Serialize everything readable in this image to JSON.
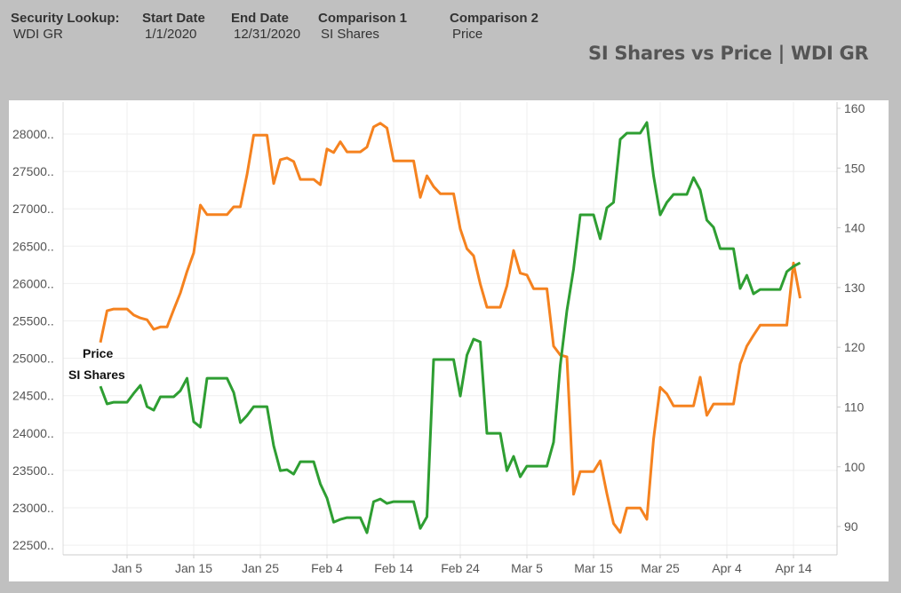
{
  "header": {
    "fields": [
      {
        "label": "Security Lookup:",
        "value": "WDI GR"
      },
      {
        "label": "Start Date",
        "value": "1/1/2020"
      },
      {
        "label": "End Date",
        "value": "12/31/2020"
      },
      {
        "label": "Comparison 1",
        "value": "SI Shares"
      },
      {
        "label": "Comparison 2",
        "value": "Price"
      }
    ]
  },
  "chart_data": {
    "type": "line",
    "title": "SI Shares vs Price | WDI GR",
    "grid": true,
    "x_tick_labels": [
      "Jan 5",
      "Jan 15",
      "Jan 25",
      "Feb 4",
      "Feb 14",
      "Feb 24",
      "Mar 5",
      "Mar 15",
      "Mar 25",
      "Apr 4",
      "Apr 14"
    ],
    "x_ticks": [
      "2020-01-05",
      "2020-01-15",
      "2020-01-25",
      "2020-02-04",
      "2020-02-14",
      "2020-02-24",
      "2020-03-05",
      "2020-03-15",
      "2020-03-25",
      "2020-04-04",
      "2020-04-14"
    ],
    "left_axis": {
      "ylim": [
        22350,
        28400
      ],
      "ticks": [
        22500,
        23000,
        23500,
        24000,
        24500,
        25000,
        25500,
        26000,
        26500,
        27000,
        27500,
        28000
      ],
      "tick_labels": [
        "22500..",
        "23000..",
        "23500..",
        "24000..",
        "24500..",
        "25000..",
        "25500..",
        "26000..",
        "26500..",
        "27000..",
        "27500..",
        "28000.."
      ]
    },
    "right_axis": {
      "ylim": [
        86,
        160.5
      ],
      "ticks": [
        90,
        100,
        110,
        120,
        130,
        140,
        150,
        160
      ],
      "tick_labels": [
        "90",
        "100",
        "110",
        "120",
        "130",
        "140",
        "150",
        "160"
      ]
    },
    "series": [
      {
        "name": "Price",
        "axis": "right",
        "color": "#f5821f",
        "x": [
          "2020-01-01",
          "2020-01-02",
          "2020-01-03",
          "2020-01-05",
          "2020-01-06",
          "2020-01-07",
          "2020-01-08",
          "2020-01-09",
          "2020-01-10",
          "2020-01-11",
          "2020-01-12",
          "2020-01-13",
          "2020-01-14",
          "2020-01-15",
          "2020-01-16",
          "2020-01-17",
          "2020-01-20",
          "2020-01-21",
          "2020-01-22",
          "2020-01-23",
          "2020-01-24",
          "2020-01-26",
          "2020-01-27",
          "2020-01-28",
          "2020-01-29",
          "2020-01-30",
          "2020-01-31",
          "2020-02-02",
          "2020-02-03",
          "2020-02-04",
          "2020-02-05",
          "2020-02-06",
          "2020-02-07",
          "2020-02-09",
          "2020-02-10",
          "2020-02-11",
          "2020-02-12",
          "2020-02-13",
          "2020-02-14",
          "2020-02-17",
          "2020-02-18",
          "2020-02-19",
          "2020-02-20",
          "2020-02-21",
          "2020-02-23",
          "2020-02-24",
          "2020-02-25",
          "2020-02-26",
          "2020-02-27",
          "2020-02-28",
          "2020-03-01",
          "2020-03-02",
          "2020-03-03",
          "2020-03-04",
          "2020-03-05",
          "2020-03-06",
          "2020-03-08",
          "2020-03-09",
          "2020-03-10",
          "2020-03-11",
          "2020-03-12",
          "2020-03-13",
          "2020-03-15",
          "2020-03-16",
          "2020-03-17",
          "2020-03-18",
          "2020-03-19",
          "2020-03-20",
          "2020-03-22",
          "2020-03-23",
          "2020-03-24",
          "2020-03-25",
          "2020-03-26",
          "2020-03-27",
          "2020-03-30",
          "2020-03-31",
          "2020-04-01",
          "2020-04-02",
          "2020-04-05",
          "2020-04-06",
          "2020-04-07",
          "2020-04-08",
          "2020-04-09",
          "2020-04-13",
          "2020-04-14",
          "2020-04-15"
        ],
        "values": [
          120.8,
          126.1,
          126.4,
          126.4,
          125.4,
          124.9,
          124.6,
          123.0,
          123.4,
          123.4,
          126.3,
          129.1,
          132.7,
          135.8,
          143.8,
          142.2,
          142.2,
          143.5,
          143.5,
          148.9,
          155.5,
          155.5,
          147.4,
          151.4,
          151.7,
          151.1,
          148.1,
          148.1,
          147.2,
          153.2,
          152.6,
          154.4,
          152.7,
          152.7,
          153.5,
          156.9,
          157.5,
          156.7,
          151.2,
          151.2,
          145.1,
          148.7,
          146.9,
          145.7,
          145.7,
          139.8,
          136.5,
          135.3,
          130.6,
          126.7,
          126.7,
          130.3,
          136.2,
          132.4,
          132.1,
          129.8,
          129.8,
          120.2,
          118.7,
          118.4,
          95.4,
          99.2,
          99.2,
          101.0,
          95.5,
          90.5,
          89.0,
          93.1,
          93.1,
          91.2,
          104.6,
          113.3,
          112.2,
          110.2,
          110.2,
          115.0,
          108.6,
          110.5,
          110.5,
          117.2,
          120.2,
          122.0,
          123.7,
          123.7,
          134.1,
          128.2
        ]
      },
      {
        "name": "SI Shares",
        "axis": "left",
        "color": "#2e9e32",
        "x": [
          "2020-01-01",
          "2020-01-02",
          "2020-01-03",
          "2020-01-05",
          "2020-01-06",
          "2020-01-07",
          "2020-01-08",
          "2020-01-09",
          "2020-01-10",
          "2020-01-12",
          "2020-01-13",
          "2020-01-14",
          "2020-01-15",
          "2020-01-16",
          "2020-01-17",
          "2020-01-20",
          "2020-01-21",
          "2020-01-22",
          "2020-01-23",
          "2020-01-24",
          "2020-01-26",
          "2020-01-27",
          "2020-01-28",
          "2020-01-29",
          "2020-01-30",
          "2020-01-31",
          "2020-02-02",
          "2020-02-03",
          "2020-02-04",
          "2020-02-05",
          "2020-02-06",
          "2020-02-07",
          "2020-02-09",
          "2020-02-10",
          "2020-02-11",
          "2020-02-12",
          "2020-02-13",
          "2020-02-14",
          "2020-02-17",
          "2020-02-18",
          "2020-02-19",
          "2020-02-20",
          "2020-02-23",
          "2020-02-24",
          "2020-02-25",
          "2020-02-26",
          "2020-02-27",
          "2020-02-28",
          "2020-03-01",
          "2020-03-02",
          "2020-03-03",
          "2020-03-04",
          "2020-03-05",
          "2020-03-08",
          "2020-03-09",
          "2020-03-10",
          "2020-03-11",
          "2020-03-12",
          "2020-03-13",
          "2020-03-15",
          "2020-03-16",
          "2020-03-17",
          "2020-03-18",
          "2020-03-19",
          "2020-03-20",
          "2020-03-22",
          "2020-03-23",
          "2020-03-24",
          "2020-03-25",
          "2020-03-26",
          "2020-03-27",
          "2020-03-29",
          "2020-03-30",
          "2020-03-31",
          "2020-04-01",
          "2020-04-02",
          "2020-04-03",
          "2020-04-05",
          "2020-04-06",
          "2020-04-07",
          "2020-04-08",
          "2020-04-09",
          "2020-04-12",
          "2020-04-13",
          "2020-04-14",
          "2020-04-15"
        ],
        "values": [
          24626,
          24389,
          24412,
          24412,
          24531,
          24638,
          24353,
          24305,
          24484,
          24484,
          24567,
          24733,
          24151,
          24080,
          24733,
          24733,
          24543,
          24139,
          24234,
          24353,
          24353,
          23830,
          23497,
          23509,
          23450,
          23616,
          23616,
          23319,
          23129,
          22808,
          22844,
          22868,
          22868,
          22666,
          23082,
          23117,
          23058,
          23082,
          23082,
          22725,
          22880,
          24983,
          24983,
          24495,
          25042,
          25256,
          25220,
          23996,
          23996,
          23497,
          23688,
          23414,
          23557,
          23557,
          23878,
          24899,
          25636,
          26194,
          26919,
          26919,
          26598,
          27014,
          27085,
          27929,
          28012,
          28012,
          28154,
          27442,
          26919,
          27085,
          27192,
          27192,
          27418,
          27252,
          26848,
          26753,
          26467,
          26467,
          25933,
          26111,
          25862,
          25921,
          25921,
          26159,
          26230,
          26277
        ]
      }
    ],
    "annotations": [
      {
        "text": "Price",
        "series": "Price"
      },
      {
        "text": "SI Shares",
        "series": "SI Shares"
      }
    ]
  }
}
